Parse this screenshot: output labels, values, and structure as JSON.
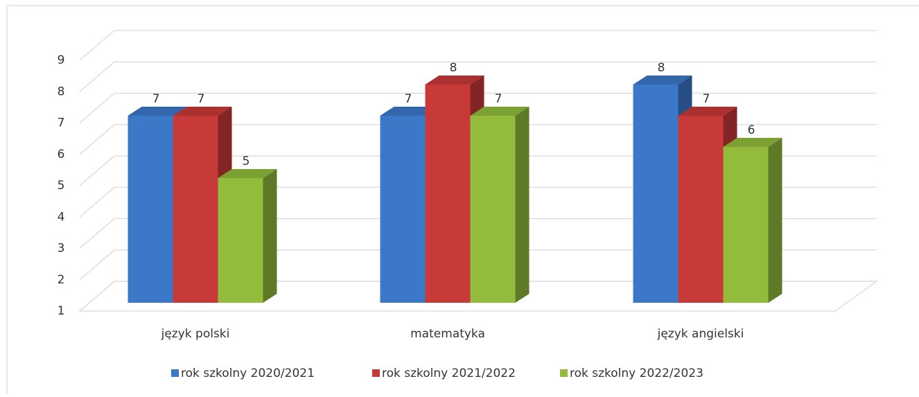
{
  "chart_data": {
    "type": "bar3d",
    "categories": [
      "język polski",
      "matematyka",
      "język angielski"
    ],
    "series": [
      {
        "name": "rok szkolny 2020/2021",
        "color": "#3c78c8",
        "values": [
          7,
          7,
          8
        ]
      },
      {
        "name": "rok szkolny 2021/2022",
        "color": "#c83a38",
        "values": [
          7,
          8,
          7
        ]
      },
      {
        "name": "rok szkolny 2022/2023",
        "color": "#93bc3c",
        "values": [
          5,
          7,
          6
        ]
      }
    ],
    "ylim": [
      1,
      9
    ],
    "yticks": [
      1,
      2,
      3,
      4,
      5,
      6,
      7,
      8,
      9
    ],
    "grid": true,
    "legend": "bottom"
  }
}
